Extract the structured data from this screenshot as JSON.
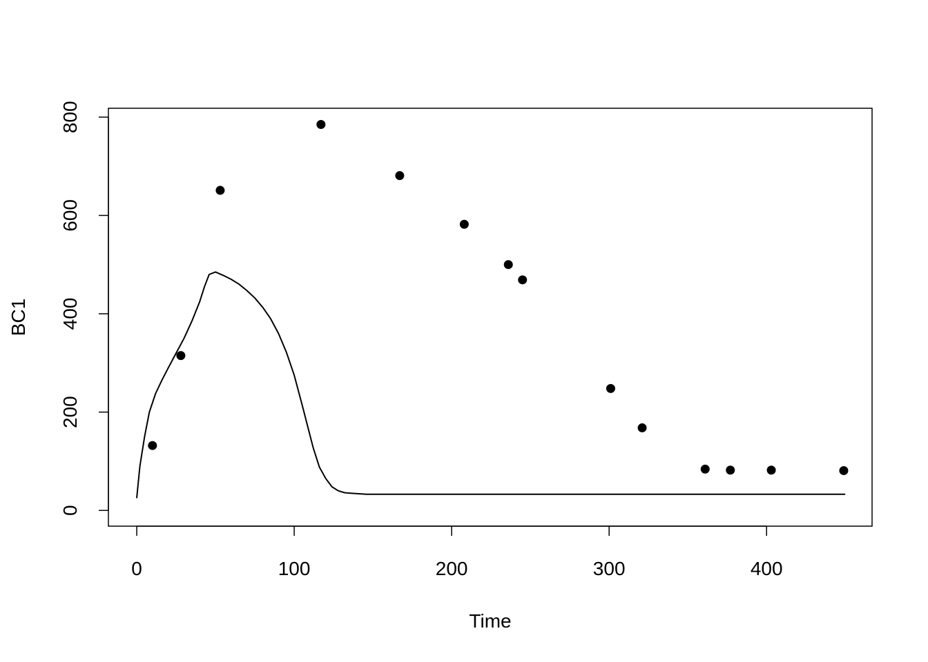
{
  "chart_data": {
    "type": "scatter",
    "title": "",
    "xlabel": "Time",
    "ylabel": "BC1",
    "xlim": [
      -18,
      467
    ],
    "ylim": [
      -32,
      818
    ],
    "x_ticks": [
      0,
      100,
      200,
      300,
      400
    ],
    "y_ticks": [
      0,
      200,
      400,
      600,
      800
    ],
    "x_tick_labels": [
      "0",
      "100",
      "200",
      "300",
      "400"
    ],
    "y_tick_labels": [
      "0",
      "200",
      "400",
      "600",
      "800"
    ],
    "grid": false,
    "legend": "none",
    "series": [
      {
        "kind": "points",
        "color": "#000000",
        "x": [
          10,
          28,
          53,
          117,
          167,
          208,
          236,
          245,
          301,
          321,
          361,
          377,
          403,
          449
        ],
        "y": [
          132,
          315,
          651,
          785,
          681,
          582,
          500,
          469,
          248,
          168,
          84,
          82,
          82,
          81
        ]
      },
      {
        "kind": "line",
        "color": "#000000",
        "x": [
          0,
          2,
          5,
          8,
          12,
          16,
          20,
          25,
          30,
          35,
          40,
          43,
          46,
          50,
          55,
          60,
          65,
          70,
          75,
          80,
          85,
          90,
          95,
          100,
          105,
          108,
          112,
          116,
          120,
          124,
          128,
          132,
          136,
          140,
          146,
          160,
          200,
          300,
          400,
          450
        ],
        "y": [
          25,
          90,
          150,
          200,
          238,
          265,
          290,
          320,
          350,
          385,
          425,
          455,
          480,
          485,
          478,
          470,
          460,
          447,
          432,
          413,
          390,
          360,
          322,
          275,
          215,
          178,
          128,
          88,
          65,
          48,
          40,
          36,
          35,
          34,
          33,
          33,
          33,
          33,
          33,
          33
        ]
      }
    ]
  }
}
